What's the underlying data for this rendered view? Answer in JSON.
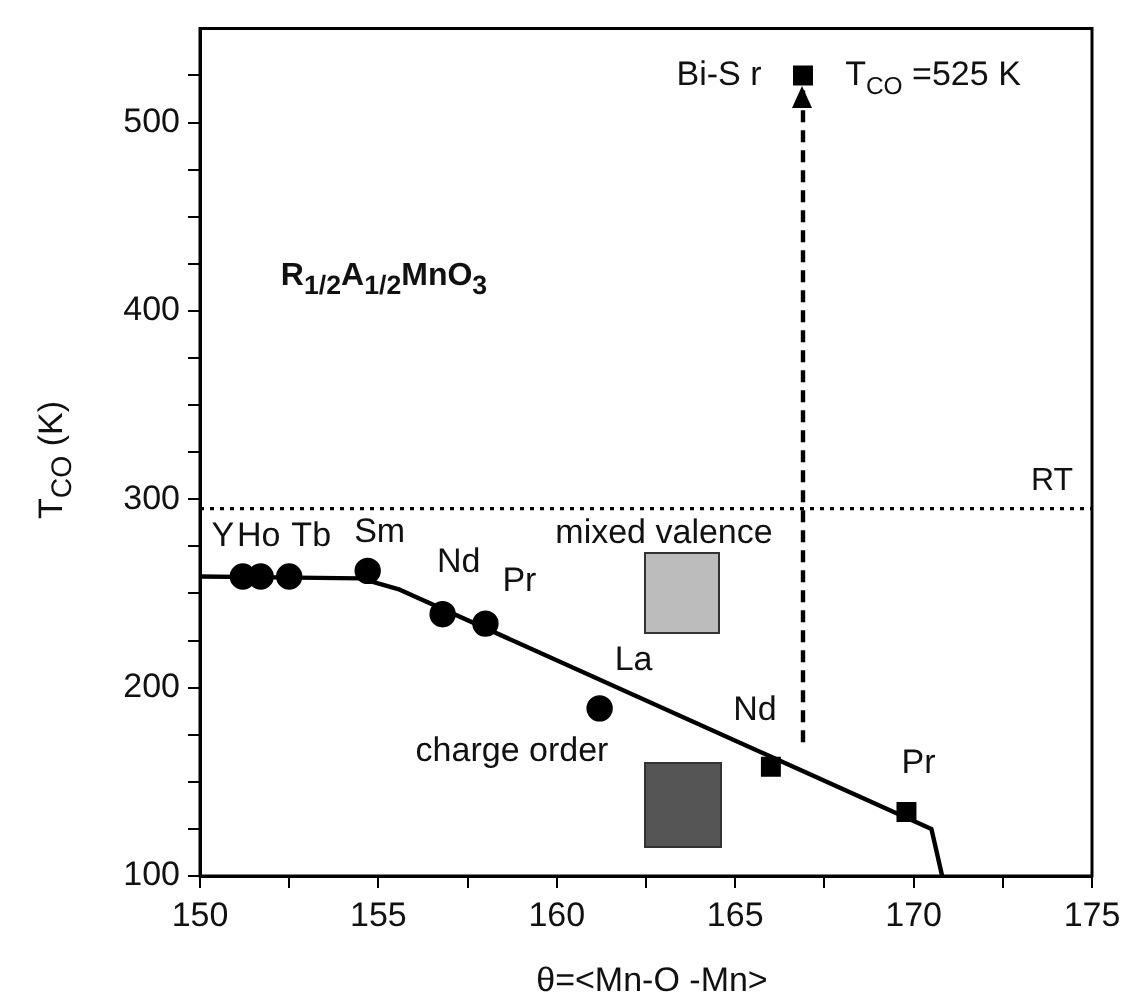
{
  "chart_data": {
    "type": "scatter",
    "xlabel": "θ=<Mn-O -Mn>",
    "ylabel": "T$_{CO}$ (K)",
    "xlim": [
      150,
      175
    ],
    "xticks": [
      150,
      {
        "value": 152.5,
        "label": null
      },
      155,
      {
        "value": 157.5,
        "label": null
      },
      160,
      {
        "value": 162.5,
        "label": null
      },
      165,
      {
        "value": 167.5,
        "label": null
      },
      170,
      {
        "value": 172.5,
        "label": null
      },
      175
    ],
    "ylim": [
      100,
      550
    ],
    "yticks": [
      100,
      {
        "value": 125,
        "label": null
      },
      {
        "value": 150,
        "label": null
      },
      {
        "value": 175,
        "label": null
      },
      200,
      {
        "value": 225,
        "label": null
      },
      {
        "value": 250,
        "label": null
      },
      {
        "value": 275,
        "label": null
      },
      300,
      {
        "value": 325,
        "label": null
      },
      {
        "value": 350,
        "label": null
      },
      {
        "value": 375,
        "label": null
      },
      400,
      {
        "value": 425,
        "label": null
      },
      {
        "value": 450,
        "label": null
      },
      {
        "value": 475,
        "label": null
      },
      500,
      {
        "value": 525,
        "label": null
      }
    ],
    "grid": false,
    "legend": false,
    "series": [
      {
        "type": "line",
        "x": [
          150,
          154.5,
          155.6,
          170.5,
          170.8
        ],
        "values": [
          259,
          258,
          252,
          125,
          100
        ],
        "color": "#000000",
        "marker": "none",
        "line_style": "solid"
      },
      {
        "x": [
          151.2,
          151.7,
          152.5,
          154.7,
          156.8,
          158.0,
          161.2
        ],
        "values": [
          259,
          259,
          259,
          262,
          239,
          234,
          189
        ],
        "color": "#000000",
        "marker": "circle"
      },
      {
        "x": [
          166.0,
          169.8,
          166.9
        ],
        "values": [
          158,
          134,
          525
        ],
        "color": "#000000",
        "marker": "square"
      },
      {
        "type": "line",
        "x": [
          166.9,
          166.9
        ],
        "values": [
          171,
          517
        ],
        "color": "#000000",
        "marker": "none",
        "line_style": "dashed"
      }
    ],
    "ref_lines": [
      {
        "axis": "y",
        "value": 295,
        "label": "RT",
        "line_style": "dotted",
        "color": "#000000"
      }
    ],
    "annotations": [
      "R$_{1/2}$A$_{1/2}$MnO$_{3}$",
      "mixed valence",
      "charge order",
      {
        "text": "Y",
        "x": 151.2,
        "y": 259
      },
      {
        "text": "Ho",
        "x": 151.7,
        "y": 259
      },
      {
        "text": "Tb",
        "x": 152.5,
        "y": 259
      },
      {
        "text": "Sm",
        "x": 154.7,
        "y": 262
      },
      {
        "text": "Nd",
        "x": 156.8,
        "y": 239
      },
      {
        "text": "Pr",
        "x": 158.0,
        "y": 234
      },
      {
        "text": "La",
        "x": 161.2,
        "y": 189
      },
      {
        "text": "Nd",
        "x": 166.0,
        "y": 158
      },
      {
        "text": "Pr",
        "x": 169.8,
        "y": 134
      },
      {
        "text": "Bi-S r",
        "x": 166.9,
        "y": 525
      },
      {
        "text": "T$_{CO}$ =525 K",
        "x": 166.9,
        "y": 525
      }
    ]
  }
}
